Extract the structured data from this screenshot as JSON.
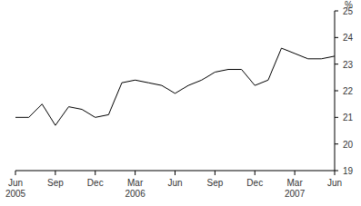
{
  "chart_data": {
    "type": "line",
    "y_label": "%",
    "categories": [
      "Jun 2005",
      null,
      null,
      "Sep",
      null,
      null,
      "Dec",
      null,
      null,
      "Mar 2006",
      null,
      null,
      "Jun",
      null,
      null,
      "Sep",
      null,
      null,
      "Dec",
      null,
      null,
      "Mar 2007",
      null,
      null,
      "Jun"
    ],
    "values": [
      21.0,
      21.0,
      21.5,
      20.7,
      21.4,
      21.3,
      21.0,
      21.1,
      22.3,
      22.4,
      22.3,
      22.2,
      21.9,
      22.2,
      22.4,
      22.7,
      22.8,
      22.8,
      22.2,
      22.4,
      23.6,
      23.4,
      23.2,
      23.2,
      23.3
    ],
    "color": "#000000",
    "ylim": [
      19,
      25
    ],
    "yticks": [
      19,
      20,
      21,
      22,
      23,
      24,
      25
    ],
    "grid": false
  }
}
